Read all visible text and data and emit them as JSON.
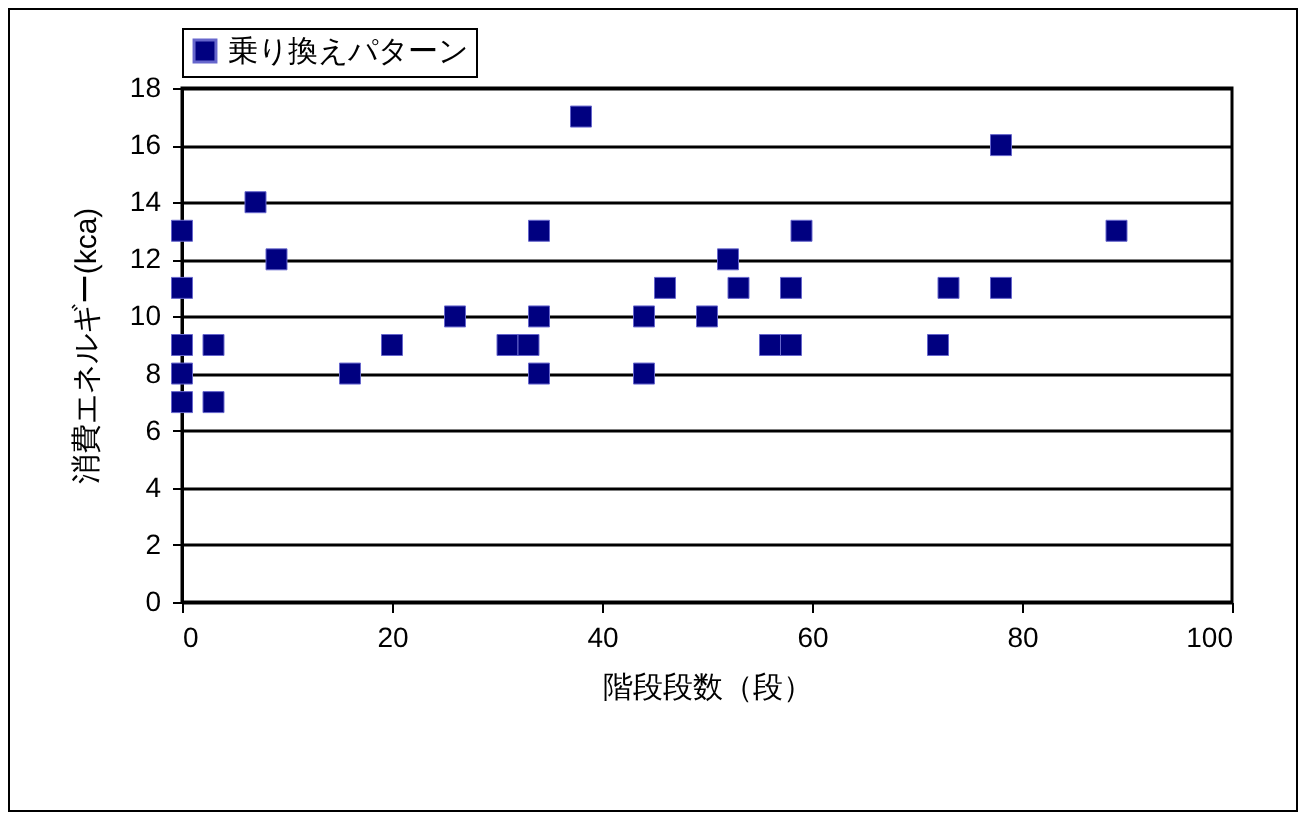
{
  "chart_data": {
    "type": "scatter",
    "xlabel": "階段段数（段）",
    "ylabel": "消費エネルギー(kca)",
    "series": [
      {
        "name": "乗り換えパターン",
        "color": "#000080",
        "x": [
          0,
          0,
          0,
          0,
          0,
          3,
          3,
          7,
          9,
          16,
          20,
          26,
          31,
          33,
          34,
          34,
          34,
          38,
          44,
          44,
          46,
          50,
          52,
          53,
          56,
          58,
          58,
          59,
          72,
          73,
          78,
          78,
          89
        ],
        "values": [
          13,
          11,
          9,
          8,
          7,
          9,
          7,
          14,
          12,
          8,
          9,
          10,
          9,
          9,
          13,
          10,
          8,
          17,
          10,
          8,
          11,
          10,
          12,
          11,
          9,
          11,
          9,
          13,
          9,
          11,
          16,
          11,
          13
        ]
      }
    ],
    "xlim": [
      0,
      100
    ],
    "xticks": [
      0,
      20,
      40,
      60,
      80,
      100
    ],
    "ylim": [
      0,
      18
    ],
    "yticks": [
      0,
      2,
      4,
      6,
      8,
      10,
      12,
      14,
      16,
      18
    ],
    "grid": "y",
    "legend": "top",
    "marker": "square"
  }
}
